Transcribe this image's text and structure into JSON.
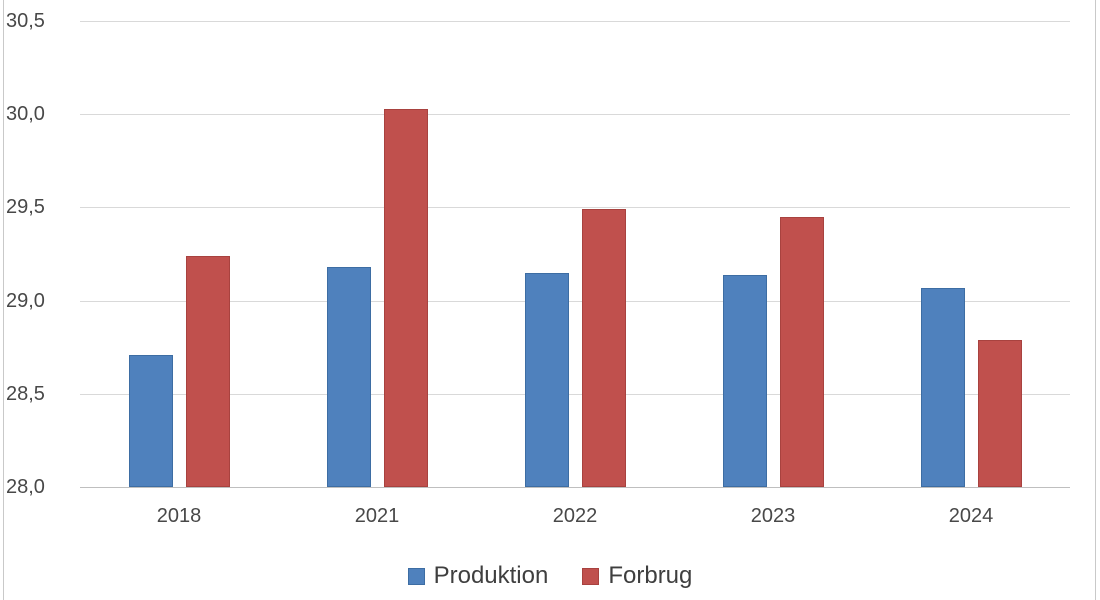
{
  "chart_data": {
    "type": "bar",
    "title": "",
    "categories": [
      "2018",
      "2021",
      "2022",
      "2023",
      "2024"
    ],
    "series": [
      {
        "name": "Produktion",
        "color": "#4F81BD",
        "border_color": "#3D6DA3",
        "values": [
          28.71,
          29.18,
          29.15,
          29.14,
          29.07
        ]
      },
      {
        "name": "Forbrug",
        "color": "#C0504D",
        "border_color": "#A8423F",
        "values": [
          29.24,
          30.03,
          29.49,
          29.45,
          28.79
        ]
      }
    ],
    "xlabel": "",
    "ylabel": "",
    "ylim": [
      28.0,
      30.5
    ],
    "yticks": [
      {
        "value": 28.0,
        "label": "28,0"
      },
      {
        "value": 28.5,
        "label": "28,5"
      },
      {
        "value": 29.0,
        "label": "29,0"
      },
      {
        "value": 29.5,
        "label": "29,5"
      },
      {
        "value": 30.0,
        "label": "30,0"
      },
      {
        "value": 30.5,
        "label": "30,5"
      }
    ],
    "grid": true,
    "legend_position": "bottom",
    "decimal_separator": ","
  },
  "layout_colors": {
    "gridline": "#d9d9d9",
    "axis_line": "#bfbfbf",
    "tick_text": "#484848",
    "legend_text": "#3f3f3f"
  }
}
